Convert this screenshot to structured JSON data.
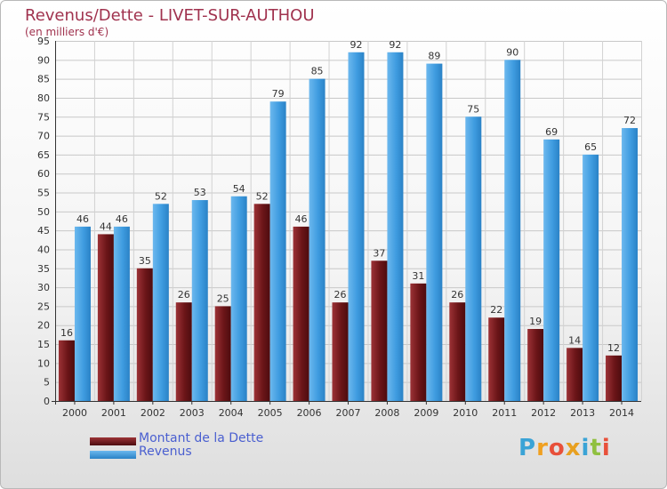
{
  "title": "Revenus/Dette - LIVET-SUR-AUTHOU",
  "subtitle": "(en milliers d'€)",
  "logo": {
    "letters": [
      "P",
      "r",
      "o",
      "x",
      "i",
      "t",
      "i"
    ],
    "colors": [
      "#3aa3d6",
      "#f0a020",
      "#e8503a",
      "#e8a020",
      "#3aa3d6",
      "#90c040",
      "#e8503a"
    ]
  },
  "legend": [
    {
      "label": "Montant de la Dette",
      "color": "#6b1518"
    },
    {
      "label": "Revenus",
      "color": "#3f9ce0"
    }
  ],
  "chart_data": {
    "type": "bar",
    "categories": [
      "2000",
      "2001",
      "2002",
      "2003",
      "2004",
      "2005",
      "2006",
      "2007",
      "2008",
      "2009",
      "2010",
      "2011",
      "2012",
      "2013",
      "2014"
    ],
    "series": [
      {
        "name": "Montant de la Dette",
        "values": [
          16,
          44,
          35,
          26,
          25,
          52,
          46,
          26,
          37,
          31,
          26,
          22,
          19,
          14,
          12
        ],
        "color": "#6b1518"
      },
      {
        "name": "Revenus",
        "values": [
          46,
          46,
          52,
          53,
          54,
          79,
          85,
          92,
          92,
          89,
          75,
          90,
          69,
          65,
          72
        ],
        "color": "#3f9ce0"
      }
    ],
    "ylim": [
      0,
      95
    ],
    "yticks": [
      0,
      5,
      10,
      15,
      20,
      25,
      30,
      35,
      40,
      45,
      50,
      55,
      60,
      65,
      70,
      75,
      80,
      85,
      90,
      95
    ],
    "grid": true,
    "legend_position": "bottom-left"
  }
}
